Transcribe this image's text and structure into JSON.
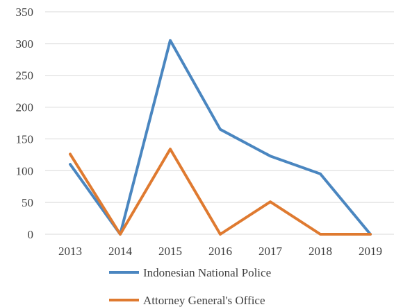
{
  "chart_data": {
    "type": "line",
    "categories": [
      "2013",
      "2014",
      "2015",
      "2016",
      "2017",
      "2018",
      "2019"
    ],
    "series": [
      {
        "name": "Indonesian National Police",
        "color": "#4a86c0",
        "values": [
          110,
          0,
          305,
          165,
          123,
          95,
          0
        ]
      },
      {
        "name": "Attorney General's Office",
        "color": "#df7a30",
        "values": [
          126,
          0,
          134,
          0,
          51,
          0,
          0
        ]
      }
    ],
    "y_ticks": [
      "0",
      "50",
      "100",
      "150",
      "200",
      "250",
      "300",
      "350"
    ],
    "ylim": [
      0,
      350
    ],
    "grid": true,
    "legend_position": "bottom"
  }
}
